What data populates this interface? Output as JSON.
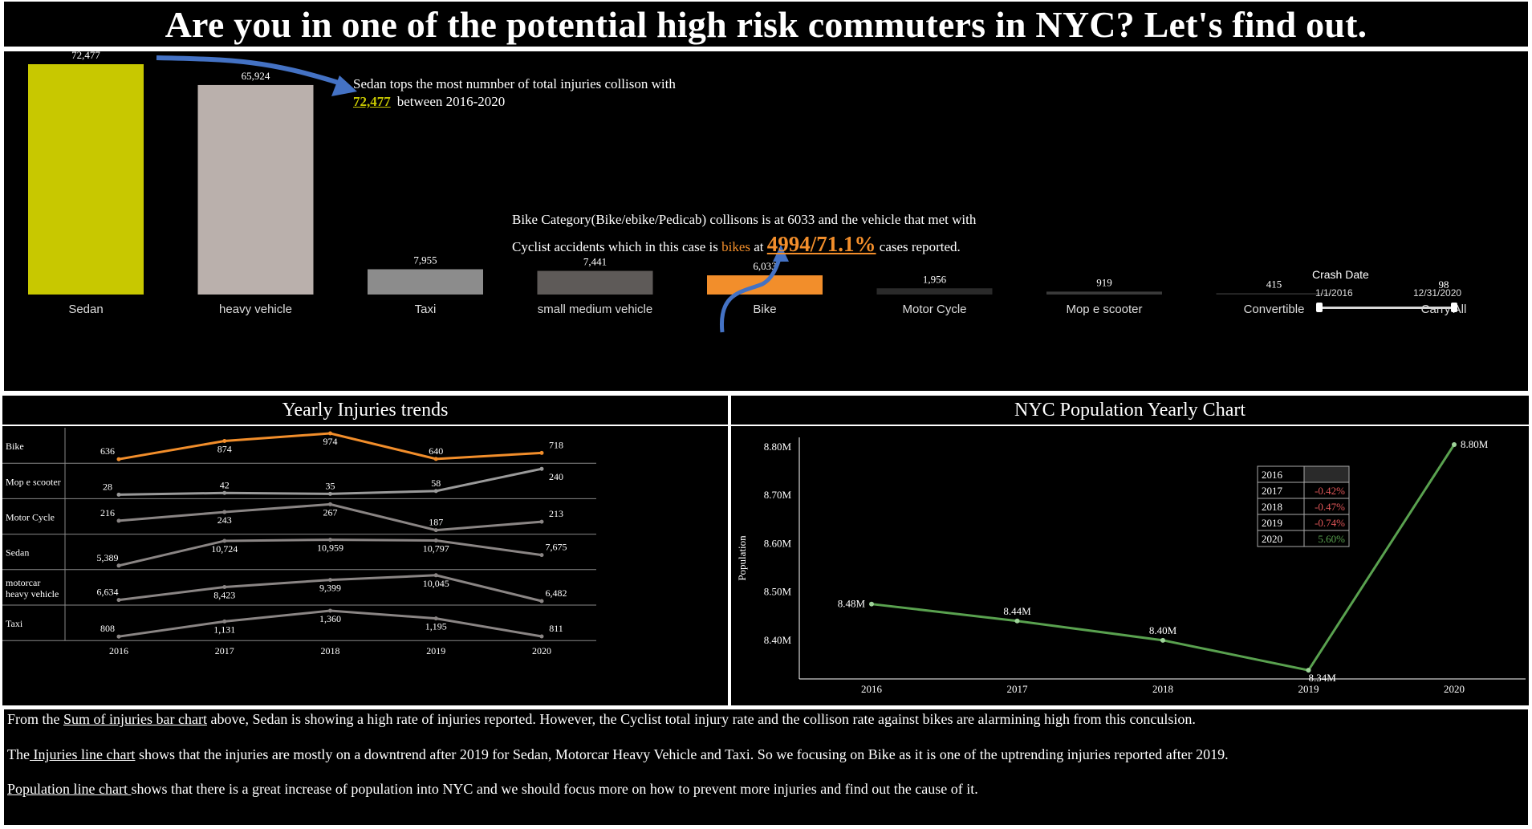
{
  "title": "Are you in one of the potential high risk commuters in NYC? Let's find out.",
  "chart_data": [
    {
      "type": "bar",
      "title": "",
      "categories": [
        "Sedan",
        "heavy vehicle",
        "Taxi",
        "small medium vehicle",
        "Bike",
        "Motor Cycle",
        "Mop e scooter",
        "Convertible",
        "Carry All"
      ],
      "values": [
        72477,
        65924,
        7955,
        7441,
        6033,
        1956,
        919,
        415,
        98
      ],
      "value_labels": [
        "72,477",
        "65,924",
        "7,955",
        "7,441",
        "6,033",
        "1,956",
        "919",
        "415",
        "98"
      ],
      "colors": [
        "#c8c800",
        "#bab0ac",
        "#8c8c8c",
        "#5e5a58",
        "#f28e2b",
        "#2a2a2a",
        "#3a3a3a",
        "#303030",
        "#000000"
      ],
      "ylim": [
        0,
        72477
      ]
    },
    {
      "type": "line",
      "title": "Yearly Injuries trends",
      "x": [
        "2016",
        "2017",
        "2018",
        "2019",
        "2020"
      ],
      "series": [
        {
          "name": "Bike",
          "values": [
            636,
            874,
            974,
            640,
            718
          ],
          "labels": [
            "636",
            "874",
            "974",
            "640",
            "718"
          ],
          "color": "#f28e2b"
        },
        {
          "name": "Mop e scooter",
          "values": [
            28,
            42,
            35,
            58,
            240
          ],
          "labels": [
            "28",
            "42",
            "35",
            "58",
            "240"
          ],
          "color": "#9a9a9a"
        },
        {
          "name": "Motor Cycle",
          "values": [
            216,
            243,
            267,
            187,
            213
          ],
          "labels": [
            "216",
            "243",
            "267",
            "187",
            "213"
          ],
          "color": "#8a8584"
        },
        {
          "name": "Sedan",
          "values": [
            5389,
            10724,
            10959,
            10797,
            7675
          ],
          "labels": [
            "5,389",
            "10,724",
            "10,959",
            "10,797",
            "7,675"
          ],
          "color": "#8a8584"
        },
        {
          "name": "motorcar heavy vehicle",
          "name_lines": [
            "motorcar",
            "heavy vehicle"
          ],
          "values": [
            6634,
            8423,
            9399,
            10045,
            6482
          ],
          "labels": [
            "6,634",
            "8,423",
            "9,399",
            "10,045",
            "6,482"
          ],
          "color": "#8a8584"
        },
        {
          "name": "Taxi",
          "values": [
            808,
            1131,
            1360,
            1195,
            811
          ],
          "labels": [
            "808",
            "1,131",
            "1,360",
            "1,195",
            "811"
          ],
          "color": "#8a8584"
        }
      ]
    },
    {
      "type": "line",
      "title": "NYC Population Yearly Chart",
      "x": [
        "2016",
        "2017",
        "2018",
        "2019",
        "2020"
      ],
      "values": [
        8.475,
        8.44,
        8.4,
        8.338,
        8.805
      ],
      "value_labels": [
        "8.48M",
        "8.44M",
        "8.40M",
        "8.34M",
        "8.80M"
      ],
      "ylabel": "Population",
      "yticks": [
        8.4,
        8.5,
        8.6,
        8.7,
        8.8
      ],
      "ytick_labels": [
        "8.40M",
        "8.50M",
        "8.60M",
        "8.70M",
        "8.80M"
      ],
      "ylim": [
        8.32,
        8.82
      ],
      "color": "#59a14f",
      "change_table": [
        {
          "year": "2016",
          "change": ""
        },
        {
          "year": "2017",
          "change": "-0.42%"
        },
        {
          "year": "2018",
          "change": "-0.47%"
        },
        {
          "year": "2019",
          "change": "-0.74%"
        },
        {
          "year": "2020",
          "change": "5.60%"
        }
      ],
      "negative_color": "#e15759",
      "positive_color": "#59a14f"
    }
  ],
  "annotations": {
    "sedan_line1": "Sedan tops the most numnber of total injuries collison with",
    "sedan_value": "72,477",
    "sedan_line2": "between 2016-2020",
    "bike_line1": "Bike Category(Bike/ebike/Pedicab) collisons is at 6033 and the vehicle that met with",
    "bike_line2_a": "Cyclist accidents which in this case is",
    "bike_word": "bikes",
    "bike_at": "at",
    "bike_big": "4994/71.1%",
    "bike_line2_b": "cases reported."
  },
  "filter": {
    "title": "Crash Date",
    "start": "1/1/2016",
    "end": "12/31/2020"
  },
  "summary": {
    "p1_a": "From the ",
    "p1_link": "Sum of injuries bar chart",
    "p1_b": " above, Sedan is showing a high rate of injuries reported. However, the Cyclist total injury rate and the collison rate against bikes are alarmining high from this conculsion.",
    "p2_a": "The",
    "p2_link": " Injuries line chart",
    "p2_b": " shows that the injuries are mostly on a downtrend after 2019 for Sedan, Motorcar Heavy Vehicle and Taxi. So we focusing on Bike as it is one of the uptrending injuries reported after 2019.",
    "p3_link": "Population line chart ",
    "p3_b": "shows that there is a great increase of population into NYC and we should focus more on how to prevent more injuries and find out the cause of it."
  }
}
